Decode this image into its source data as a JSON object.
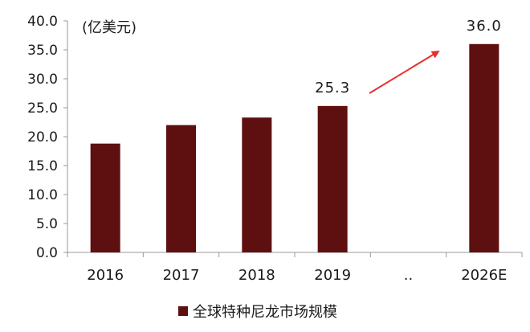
{
  "chart_data": {
    "type": "bar",
    "unit_label": "(亿美元)",
    "categories": [
      "2016",
      "2017",
      "2018",
      "2019",
      "..",
      "2026E"
    ],
    "values": [
      18.8,
      22.0,
      23.3,
      25.3,
      null,
      36.0
    ],
    "data_labels": [
      "",
      "",
      "",
      "25.3",
      "",
      "36.0"
    ],
    "ylim": [
      0,
      40
    ],
    "yticks": [
      "0.0",
      "5.0",
      "10.0",
      "15.0",
      "20.0",
      "25.0",
      "30.0",
      "35.0",
      "40.0"
    ],
    "series": [
      {
        "name": "全球特种尼龙市场规模",
        "values": [
          18.8,
          22.0,
          23.3,
          25.3,
          null,
          36.0
        ]
      }
    ],
    "grid": false,
    "legend_position": "bottom",
    "annotation": "arrow",
    "colors": {
      "bar": "#5e0f0f",
      "arrow": "#e8302a",
      "axis": "#999999"
    }
  }
}
